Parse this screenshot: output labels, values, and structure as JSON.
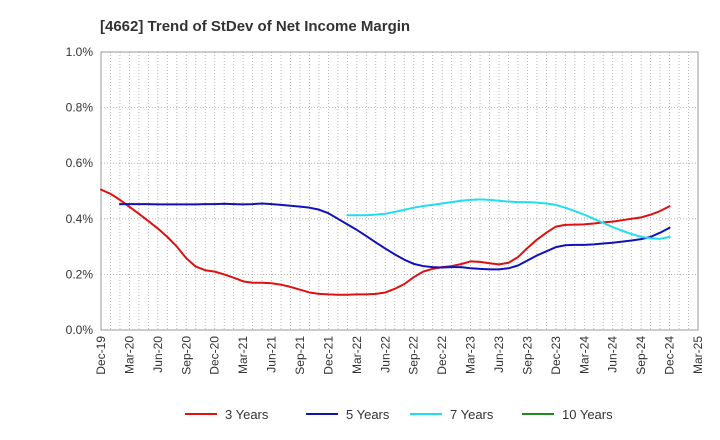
{
  "chart_data": {
    "type": "line",
    "title": "[4662]  Trend of StDev of Net Income Margin",
    "xlabel": "",
    "ylabel": "",
    "x_ticks": [
      "Dec-19",
      "Mar-20",
      "Jun-20",
      "Sep-20",
      "Dec-20",
      "Mar-21",
      "Jun-21",
      "Sep-21",
      "Dec-21",
      "Mar-22",
      "Jun-22",
      "Sep-22",
      "Dec-22",
      "Mar-23",
      "Jun-23",
      "Sep-23",
      "Dec-23",
      "Mar-24",
      "Jun-24",
      "Sep-24",
      "Dec-24",
      "Mar-25"
    ],
    "y_ticks": [
      "0.0%",
      "0.2%",
      "0.4%",
      "0.6%",
      "0.8%",
      "1.0%"
    ],
    "ylim": [
      0,
      1.0
    ],
    "y_unit": "%",
    "grid": true,
    "legend_position": "bottom",
    "series": [
      {
        "name": "3 Years",
        "color": "#dd1111",
        "points": [
          [
            "Dec-19",
            0.505
          ],
          [
            "Jan-20",
            0.49
          ],
          [
            "Feb-20",
            0.468
          ],
          [
            "Mar-20",
            0.443
          ],
          [
            "Apr-20",
            0.418
          ],
          [
            "May-20",
            0.392
          ],
          [
            "Jun-20",
            0.365
          ],
          [
            "Jul-20",
            0.335
          ],
          [
            "Aug-20",
            0.3
          ],
          [
            "Sep-20",
            0.258
          ],
          [
            "Oct-20",
            0.228
          ],
          [
            "Nov-20",
            0.215
          ],
          [
            "Dec-20",
            0.21
          ],
          [
            "Jan-21",
            0.2
          ],
          [
            "Feb-21",
            0.188
          ],
          [
            "Mar-21",
            0.175
          ],
          [
            "Apr-21",
            0.17
          ],
          [
            "May-21",
            0.17
          ],
          [
            "Jun-21",
            0.168
          ],
          [
            "Jul-21",
            0.163
          ],
          [
            "Aug-21",
            0.155
          ],
          [
            "Sep-21",
            0.145
          ],
          [
            "Oct-21",
            0.135
          ],
          [
            "Nov-21",
            0.13
          ],
          [
            "Dec-21",
            0.128
          ],
          [
            "Jan-22",
            0.127
          ],
          [
            "Feb-22",
            0.127
          ],
          [
            "Mar-22",
            0.128
          ],
          [
            "Apr-22",
            0.128
          ],
          [
            "May-22",
            0.13
          ],
          [
            "Jun-22",
            0.135
          ],
          [
            "Jul-22",
            0.148
          ],
          [
            "Aug-22",
            0.165
          ],
          [
            "Sep-22",
            0.19
          ],
          [
            "Oct-22",
            0.21
          ],
          [
            "Nov-22",
            0.22
          ],
          [
            "Dec-22",
            0.226
          ],
          [
            "Jan-23",
            0.23
          ],
          [
            "Feb-23",
            0.237
          ],
          [
            "Mar-23",
            0.247
          ],
          [
            "Apr-23",
            0.245
          ],
          [
            "May-23",
            0.24
          ],
          [
            "Jun-23",
            0.236
          ],
          [
            "Jul-23",
            0.242
          ],
          [
            "Aug-23",
            0.262
          ],
          [
            "Sep-23",
            0.295
          ],
          [
            "Oct-23",
            0.325
          ],
          [
            "Nov-23",
            0.35
          ],
          [
            "Dec-23",
            0.372
          ],
          [
            "Jan-24",
            0.378
          ],
          [
            "Feb-24",
            0.379
          ],
          [
            "Mar-24",
            0.38
          ],
          [
            "Apr-24",
            0.383
          ],
          [
            "May-24",
            0.387
          ],
          [
            "Jun-24",
            0.39
          ],
          [
            "Jul-24",
            0.395
          ],
          [
            "Aug-24",
            0.4
          ],
          [
            "Sep-24",
            0.405
          ],
          [
            "Oct-24",
            0.415
          ],
          [
            "Nov-24",
            0.428
          ],
          [
            "Dec-24",
            0.445
          ]
        ]
      },
      {
        "name": "5 Years",
        "color": "#1111bb",
        "points": [
          [
            "Feb-20",
            0.453
          ],
          [
            "Mar-20",
            0.453
          ],
          [
            "Apr-20",
            0.453
          ],
          [
            "May-20",
            0.453
          ],
          [
            "Jun-20",
            0.452
          ],
          [
            "Jul-20",
            0.452
          ],
          [
            "Aug-20",
            0.452
          ],
          [
            "Sep-20",
            0.452
          ],
          [
            "Oct-20",
            0.452
          ],
          [
            "Nov-20",
            0.453
          ],
          [
            "Dec-20",
            0.453
          ],
          [
            "Jan-21",
            0.454
          ],
          [
            "Feb-21",
            0.453
          ],
          [
            "Mar-21",
            0.452
          ],
          [
            "Apr-21",
            0.453
          ],
          [
            "May-21",
            0.455
          ],
          [
            "Jun-21",
            0.453
          ],
          [
            "Jul-21",
            0.45
          ],
          [
            "Aug-21",
            0.447
          ],
          [
            "Sep-21",
            0.444
          ],
          [
            "Oct-21",
            0.44
          ],
          [
            "Nov-21",
            0.433
          ],
          [
            "Dec-21",
            0.42
          ],
          [
            "Jan-22",
            0.4
          ],
          [
            "Feb-22",
            0.38
          ],
          [
            "Mar-22",
            0.36
          ],
          [
            "Apr-22",
            0.338
          ],
          [
            "May-22",
            0.315
          ],
          [
            "Jun-22",
            0.293
          ],
          [
            "Jul-22",
            0.272
          ],
          [
            "Aug-22",
            0.253
          ],
          [
            "Sep-22",
            0.238
          ],
          [
            "Oct-22",
            0.23
          ],
          [
            "Nov-22",
            0.226
          ],
          [
            "Dec-22",
            0.225
          ],
          [
            "Jan-23",
            0.226
          ],
          [
            "Feb-23",
            0.226
          ],
          [
            "Mar-23",
            0.222
          ],
          [
            "Apr-23",
            0.22
          ],
          [
            "May-23",
            0.218
          ],
          [
            "Jun-23",
            0.218
          ],
          [
            "Jul-23",
            0.222
          ],
          [
            "Aug-23",
            0.232
          ],
          [
            "Sep-23",
            0.25
          ],
          [
            "Oct-23",
            0.268
          ],
          [
            "Nov-23",
            0.283
          ],
          [
            "Dec-23",
            0.298
          ],
          [
            "Jan-24",
            0.305
          ],
          [
            "Feb-24",
            0.306
          ],
          [
            "Mar-24",
            0.306
          ],
          [
            "Apr-24",
            0.308
          ],
          [
            "May-24",
            0.311
          ],
          [
            "Jun-24",
            0.314
          ],
          [
            "Jul-24",
            0.318
          ],
          [
            "Aug-24",
            0.322
          ],
          [
            "Sep-24",
            0.327
          ],
          [
            "Oct-24",
            0.335
          ],
          [
            "Nov-24",
            0.35
          ],
          [
            "Dec-24",
            0.368
          ]
        ]
      },
      {
        "name": "7 Years",
        "color": "#22ddee",
        "points": [
          [
            "Feb-22",
            0.413
          ],
          [
            "Mar-22",
            0.413
          ],
          [
            "Apr-22",
            0.413
          ],
          [
            "May-22",
            0.415
          ],
          [
            "Jun-22",
            0.418
          ],
          [
            "Jul-22",
            0.425
          ],
          [
            "Aug-22",
            0.432
          ],
          [
            "Sep-22",
            0.44
          ],
          [
            "Oct-22",
            0.446
          ],
          [
            "Nov-22",
            0.45
          ],
          [
            "Dec-22",
            0.455
          ],
          [
            "Jan-23",
            0.46
          ],
          [
            "Feb-23",
            0.465
          ],
          [
            "Mar-23",
            0.468
          ],
          [
            "Apr-23",
            0.47
          ],
          [
            "May-23",
            0.468
          ],
          [
            "Jun-23",
            0.465
          ],
          [
            "Jul-23",
            0.462
          ],
          [
            "Aug-23",
            0.46
          ],
          [
            "Sep-23",
            0.46
          ],
          [
            "Oct-23",
            0.458
          ],
          [
            "Nov-23",
            0.455
          ],
          [
            "Dec-23",
            0.45
          ],
          [
            "Jan-24",
            0.44
          ],
          [
            "Feb-24",
            0.428
          ],
          [
            "Mar-24",
            0.415
          ],
          [
            "Apr-24",
            0.4
          ],
          [
            "May-24",
            0.385
          ],
          [
            "Jun-24",
            0.37
          ],
          [
            "Jul-24",
            0.357
          ],
          [
            "Aug-24",
            0.345
          ],
          [
            "Sep-24",
            0.335
          ],
          [
            "Oct-24",
            0.33
          ],
          [
            "Nov-24",
            0.328
          ],
          [
            "Dec-24",
            0.335
          ]
        ]
      },
      {
        "name": "10 Years",
        "color": "#228822",
        "points": []
      }
    ]
  }
}
